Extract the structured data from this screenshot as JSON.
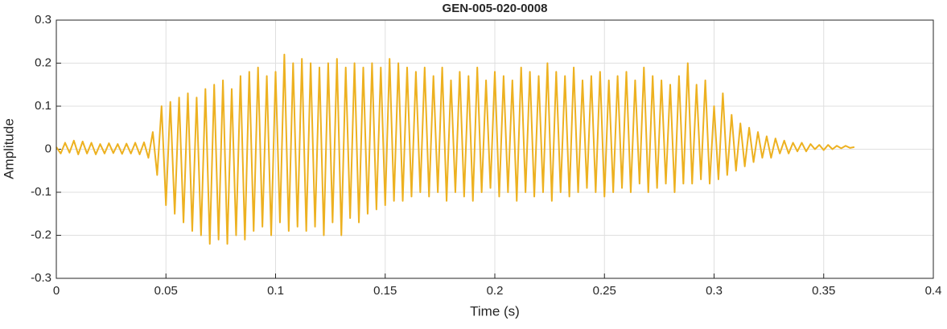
{
  "chart_data": {
    "type": "line",
    "title": "GEN-005-020-0008",
    "xlabel": "Time (s)",
    "ylabel": "Amplitude",
    "x": [
      0,
      0.002,
      0.004,
      0.006,
      0.008,
      0.01,
      0.012,
      0.014,
      0.016,
      0.018,
      0.02,
      0.022,
      0.024,
      0.026,
      0.028,
      0.03,
      0.032,
      0.034,
      0.036,
      0.038,
      0.04,
      0.042,
      0.044,
      0.046,
      0.048,
      0.05,
      0.052,
      0.054,
      0.056,
      0.058,
      0.06,
      0.062,
      0.064,
      0.066,
      0.068,
      0.07,
      0.072,
      0.074,
      0.076,
      0.078,
      0.08,
      0.082,
      0.084,
      0.086,
      0.088,
      0.09,
      0.092,
      0.094,
      0.096,
      0.098,
      0.1,
      0.102,
      0.104,
      0.106,
      0.108,
      0.11,
      0.112,
      0.114,
      0.116,
      0.118,
      0.12,
      0.122,
      0.124,
      0.126,
      0.128,
      0.13,
      0.132,
      0.134,
      0.136,
      0.138,
      0.14,
      0.142,
      0.144,
      0.146,
      0.148,
      0.15,
      0.152,
      0.154,
      0.156,
      0.158,
      0.16,
      0.162,
      0.164,
      0.166,
      0.168,
      0.17,
      0.172,
      0.174,
      0.176,
      0.178,
      0.18,
      0.182,
      0.184,
      0.186,
      0.188,
      0.19,
      0.192,
      0.194,
      0.196,
      0.198,
      0.2,
      0.202,
      0.204,
      0.206,
      0.208,
      0.21,
      0.212,
      0.214,
      0.216,
      0.218,
      0.22,
      0.222,
      0.224,
      0.226,
      0.228,
      0.23,
      0.232,
      0.234,
      0.236,
      0.238,
      0.24,
      0.242,
      0.244,
      0.246,
      0.248,
      0.25,
      0.252,
      0.254,
      0.256,
      0.258,
      0.26,
      0.262,
      0.264,
      0.266,
      0.268,
      0.27,
      0.272,
      0.274,
      0.276,
      0.278,
      0.28,
      0.282,
      0.284,
      0.286,
      0.288,
      0.29,
      0.292,
      0.294,
      0.296,
      0.298,
      0.3,
      0.302,
      0.304,
      0.306,
      0.308,
      0.31,
      0.312,
      0.314,
      0.316,
      0.318,
      0.32,
      0.322,
      0.324,
      0.326,
      0.328,
      0.33,
      0.332,
      0.334,
      0.336,
      0.338,
      0.34,
      0.342,
      0.344,
      0.346,
      0.348,
      0.35,
      0.352,
      0.354,
      0.356,
      0.358,
      0.36,
      0.362,
      0.364
    ],
    "series": [
      {
        "color": "#EDB120",
        "values": [
          0.005,
          -0.01,
          0.015,
          -0.008,
          0.02,
          -0.012,
          0.018,
          -0.01,
          0.015,
          -0.012,
          0.012,
          -0.01,
          0.014,
          -0.009,
          0.012,
          -0.011,
          0.013,
          -0.01,
          0.015,
          -0.012,
          0.016,
          -0.02,
          0.04,
          -0.06,
          0.1,
          -0.13,
          0.11,
          -0.15,
          0.12,
          -0.17,
          0.13,
          -0.19,
          0.12,
          -0.2,
          0.14,
          -0.22,
          0.15,
          -0.21,
          0.16,
          -0.22,
          0.14,
          -0.2,
          0.17,
          -0.21,
          0.18,
          -0.19,
          0.19,
          -0.18,
          0.17,
          -0.2,
          0.18,
          -0.17,
          0.22,
          -0.19,
          0.2,
          -0.18,
          0.21,
          -0.19,
          0.2,
          -0.18,
          0.19,
          -0.2,
          0.2,
          -0.17,
          0.21,
          -0.2,
          0.19,
          -0.16,
          0.2,
          -0.17,
          0.19,
          -0.15,
          0.2,
          -0.14,
          0.19,
          -0.13,
          0.21,
          -0.12,
          0.2,
          -0.12,
          0.19,
          -0.11,
          0.18,
          -0.1,
          0.19,
          -0.11,
          0.17,
          -0.1,
          0.19,
          -0.12,
          0.16,
          -0.1,
          0.18,
          -0.11,
          0.17,
          -0.12,
          0.19,
          -0.1,
          0.16,
          -0.09,
          0.18,
          -0.11,
          0.17,
          -0.1,
          0.16,
          -0.12,
          0.19,
          -0.1,
          0.18,
          -0.11,
          0.17,
          -0.1,
          0.2,
          -0.12,
          0.18,
          -0.1,
          0.17,
          -0.11,
          0.19,
          -0.1,
          0.16,
          -0.09,
          0.17,
          -0.1,
          0.18,
          -0.11,
          0.16,
          -0.1,
          0.17,
          -0.09,
          0.18,
          -0.1,
          0.16,
          -0.08,
          0.19,
          -0.1,
          0.17,
          -0.09,
          0.16,
          -0.08,
          0.15,
          -0.1,
          0.17,
          -0.08,
          0.2,
          -0.08,
          0.15,
          -0.07,
          0.16,
          -0.08,
          0.1,
          -0.07,
          0.13,
          -0.06,
          0.08,
          -0.05,
          0.06,
          -0.04,
          0.05,
          -0.03,
          0.04,
          -0.02,
          0.03,
          -0.02,
          0.025,
          -0.01,
          0.02,
          -0.01,
          0.015,
          -0.005,
          0.015,
          -0.005,
          0.012,
          0,
          0.01,
          -0.002,
          0.01,
          0,
          0.008,
          0.002,
          0.008,
          0.003,
          0.005
        ]
      }
    ],
    "xlim": [
      0,
      0.4
    ],
    "xticks": [
      0,
      0.05,
      0.1,
      0.15,
      0.2,
      0.25,
      0.3,
      0.35,
      0.4
    ],
    "ylim": [
      -0.3,
      0.3
    ],
    "yticks": [
      -0.3,
      -0.2,
      -0.1,
      0,
      0.1,
      0.2,
      0.3
    ],
    "grid": true
  }
}
